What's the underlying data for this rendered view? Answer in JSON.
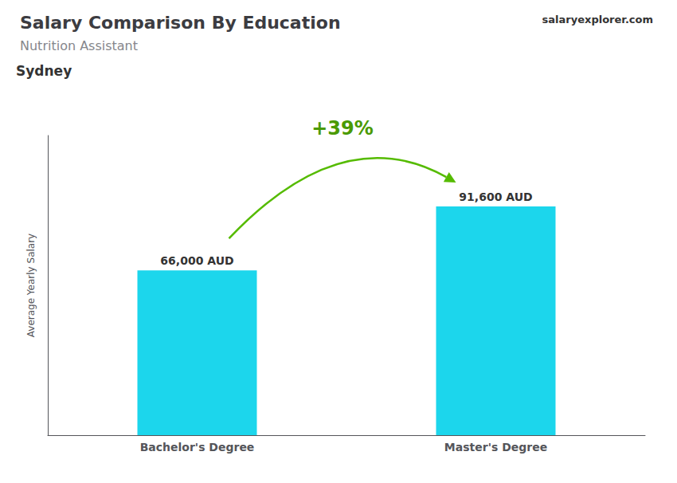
{
  "chart_data": {
    "type": "bar",
    "title": "Salary Comparison By Education",
    "subtitle": "Nutrition Assistant",
    "annotations": [
      "Sydney",
      "salaryexplorer.com",
      "+39%"
    ],
    "y_label": "Average Yearly Salary",
    "categories": [
      "Bachelor's Degree",
      "Master's Degree"
    ],
    "values": [
      66000,
      91600
    ],
    "value_labels": [
      "66,000 AUD",
      "91,600 AUD"
    ],
    "data_labels": true,
    "color": "#1cd6ec",
    "ylim": [
      0,
      120000
    ],
    "grid": false,
    "tick_labels": "x"
  }
}
